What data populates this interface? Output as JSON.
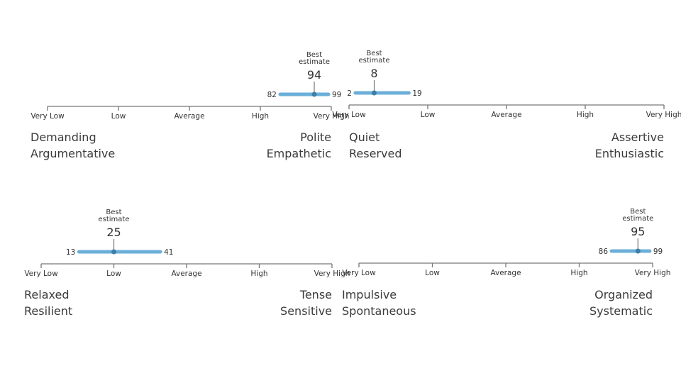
{
  "colors": {
    "range": "#6bafd9",
    "dot": "#3c7fa8",
    "axis": "#777777",
    "text": "#333333"
  },
  "chart_data": [
    {
      "type": "range",
      "axis_ticks": [
        "Very Low",
        "Low",
        "Average",
        "High",
        "Very High"
      ],
      "xlim": [
        0,
        100
      ],
      "best_label": [
        "Best",
        "estimate"
      ],
      "estimate": 94,
      "low": 82,
      "high": 99,
      "left_traits": [
        "Demanding",
        "Argumentative"
      ],
      "right_traits": [
        "Polite",
        "Empathetic"
      ]
    },
    {
      "type": "range",
      "axis_ticks": [
        "Very Low",
        "Low",
        "Average",
        "High",
        "Very High"
      ],
      "xlim": [
        0,
        100
      ],
      "best_label": [
        "Best",
        "estimate"
      ],
      "estimate": 8,
      "low": 2,
      "high": 19,
      "left_traits": [
        "Quiet",
        "Reserved"
      ],
      "right_traits": [
        "Assertive",
        "Enthusiastic"
      ]
    },
    {
      "type": "range",
      "axis_ticks": [
        "Very Low",
        "Low",
        "Average",
        "High",
        "Very High"
      ],
      "xlim": [
        0,
        100
      ],
      "best_label": [
        "Best",
        "estimate"
      ],
      "estimate": 25,
      "low": 13,
      "high": 41,
      "left_traits": [
        "Relaxed",
        "Resilient"
      ],
      "right_traits": [
        "Tense",
        "Sensitive"
      ]
    },
    {
      "type": "range",
      "axis_ticks": [
        "Very Low",
        "Low",
        "Average",
        "High",
        "Very High"
      ],
      "xlim": [
        0,
        100
      ],
      "best_label": [
        "Best",
        "estimate"
      ],
      "estimate": 95,
      "low": 86,
      "high": 99,
      "left_traits": [
        "Impulsive",
        "Spontaneous"
      ],
      "right_traits": [
        "Organized",
        "Systematic"
      ]
    }
  ]
}
